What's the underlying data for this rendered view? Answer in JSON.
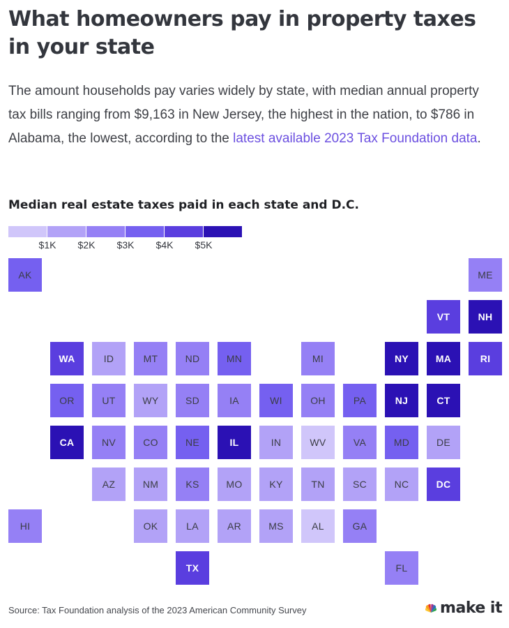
{
  "header": {
    "title": "What homeowners pay in property taxes in your state",
    "dek_before_link": "The amount households pay varies widely by state, with median annual property tax bills ranging from $9,163 in New Jersey, the highest in the nation, to $786 in Alabama, the lowest, according to the ",
    "dek_link": "latest available 2023 Tax Foundation data",
    "dek_after_link": "."
  },
  "footer": {
    "source": "Source: Tax Foundation analysis of the 2023 American Community Survey",
    "brand": "make it",
    "brand_logo_name": "cnbc-peacock-icon"
  },
  "colors": {
    "scale": [
      "#d0c6fa",
      "#b2a2f7",
      "#9580f5",
      "#7560f0",
      "#5a3edf",
      "#2b11b4"
    ],
    "link": "#6b4fe0"
  },
  "chart_data": {
    "type": "heatmap",
    "subtype": "state tile grid map",
    "title": "Median real estate taxes paid in each state and D.C.",
    "unit": "USD",
    "legend": {
      "labels": [
        "$1K",
        "$2K",
        "$3K",
        "$4K",
        "$5K"
      ],
      "thresholds": [
        1000,
        2000,
        3000,
        4000,
        5000
      ]
    },
    "states": [
      {
        "abbr": "AK",
        "level": 3,
        "row": 0,
        "col": 0
      },
      {
        "abbr": "ME",
        "level": 2,
        "row": 0,
        "col": 11
      },
      {
        "abbr": "VT",
        "level": 4,
        "row": 1,
        "col": 10
      },
      {
        "abbr": "NH",
        "level": 5,
        "row": 1,
        "col": 11
      },
      {
        "abbr": "WA",
        "level": 4,
        "row": 2,
        "col": 1
      },
      {
        "abbr": "ID",
        "level": 1,
        "row": 2,
        "col": 2
      },
      {
        "abbr": "MT",
        "level": 2,
        "row": 2,
        "col": 3
      },
      {
        "abbr": "ND",
        "level": 2,
        "row": 2,
        "col": 4
      },
      {
        "abbr": "MN",
        "level": 3,
        "row": 2,
        "col": 5
      },
      {
        "abbr": "MI",
        "level": 2,
        "row": 2,
        "col": 7
      },
      {
        "abbr": "NY",
        "level": 5,
        "row": 2,
        "col": 9
      },
      {
        "abbr": "MA",
        "level": 5,
        "row": 2,
        "col": 10
      },
      {
        "abbr": "RI",
        "level": 4,
        "row": 2,
        "col": 11
      },
      {
        "abbr": "OR",
        "level": 3,
        "row": 3,
        "col": 1
      },
      {
        "abbr": "UT",
        "level": 2,
        "row": 3,
        "col": 2
      },
      {
        "abbr": "WY",
        "level": 1,
        "row": 3,
        "col": 3
      },
      {
        "abbr": "SD",
        "level": 2,
        "row": 3,
        "col": 4
      },
      {
        "abbr": "IA",
        "level": 2,
        "row": 3,
        "col": 5
      },
      {
        "abbr": "WI",
        "level": 3,
        "row": 3,
        "col": 6
      },
      {
        "abbr": "OH",
        "level": 2,
        "row": 3,
        "col": 7
      },
      {
        "abbr": "PA",
        "level": 3,
        "row": 3,
        "col": 8
      },
      {
        "abbr": "NJ",
        "level": 5,
        "row": 3,
        "col": 9
      },
      {
        "abbr": "CT",
        "level": 5,
        "row": 3,
        "col": 10
      },
      {
        "abbr": "CA",
        "level": 5,
        "row": 4,
        "col": 1
      },
      {
        "abbr": "NV",
        "level": 2,
        "row": 4,
        "col": 2
      },
      {
        "abbr": "CO",
        "level": 2,
        "row": 4,
        "col": 3
      },
      {
        "abbr": "NE",
        "level": 3,
        "row": 4,
        "col": 4
      },
      {
        "abbr": "IL",
        "level": 5,
        "row": 4,
        "col": 5
      },
      {
        "abbr": "IN",
        "level": 1,
        "row": 4,
        "col": 6
      },
      {
        "abbr": "WV",
        "level": 0,
        "row": 4,
        "col": 7
      },
      {
        "abbr": "VA",
        "level": 2,
        "row": 4,
        "col": 8
      },
      {
        "abbr": "MD",
        "level": 3,
        "row": 4,
        "col": 9
      },
      {
        "abbr": "DE",
        "level": 1,
        "row": 4,
        "col": 10
      },
      {
        "abbr": "AZ",
        "level": 1,
        "row": 5,
        "col": 2
      },
      {
        "abbr": "NM",
        "level": 1,
        "row": 5,
        "col": 3
      },
      {
        "abbr": "KS",
        "level": 2,
        "row": 5,
        "col": 4
      },
      {
        "abbr": "MO",
        "level": 1,
        "row": 5,
        "col": 5
      },
      {
        "abbr": "KY",
        "level": 1,
        "row": 5,
        "col": 6
      },
      {
        "abbr": "TN",
        "level": 1,
        "row": 5,
        "col": 7
      },
      {
        "abbr": "SC",
        "level": 1,
        "row": 5,
        "col": 8
      },
      {
        "abbr": "NC",
        "level": 1,
        "row": 5,
        "col": 9
      },
      {
        "abbr": "DC",
        "level": 4,
        "row": 5,
        "col": 10
      },
      {
        "abbr": "HI",
        "level": 2,
        "row": 6,
        "col": 0
      },
      {
        "abbr": "OK",
        "level": 1,
        "row": 6,
        "col": 3
      },
      {
        "abbr": "LA",
        "level": 1,
        "row": 6,
        "col": 4
      },
      {
        "abbr": "AR",
        "level": 1,
        "row": 6,
        "col": 5
      },
      {
        "abbr": "MS",
        "level": 1,
        "row": 6,
        "col": 6
      },
      {
        "abbr": "AL",
        "level": 0,
        "row": 6,
        "col": 7
      },
      {
        "abbr": "GA",
        "level": 2,
        "row": 6,
        "col": 8
      },
      {
        "abbr": "TX",
        "level": 4,
        "row": 7,
        "col": 4
      },
      {
        "abbr": "FL",
        "level": 2,
        "row": 7,
        "col": 9
      }
    ]
  }
}
